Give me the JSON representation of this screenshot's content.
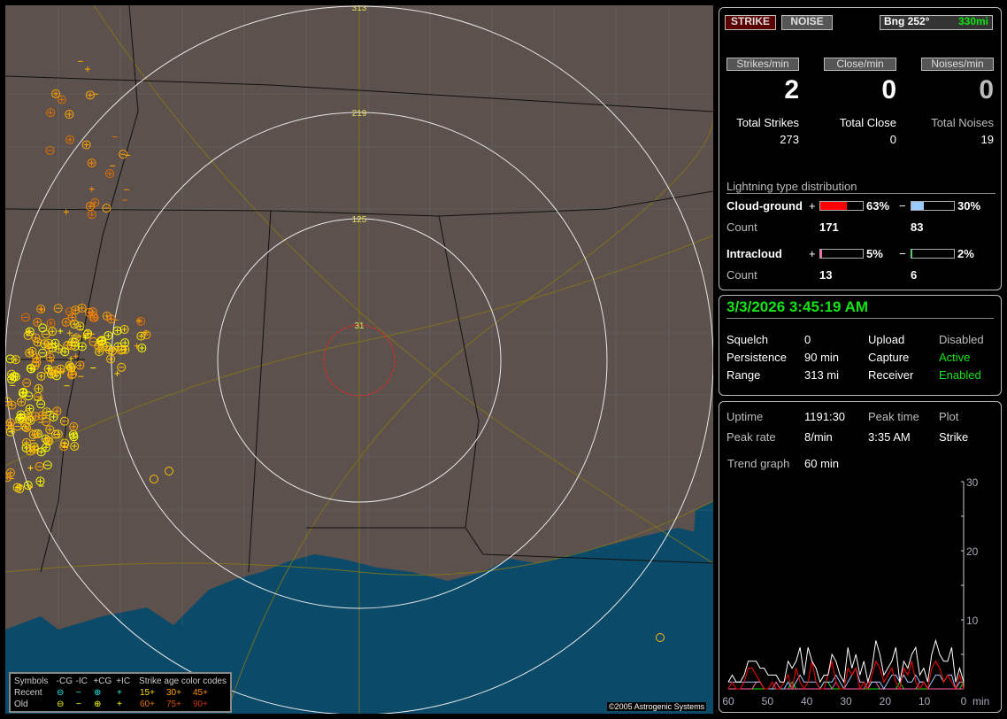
{
  "map": {
    "range_labels": [
      "313",
      "219",
      "125",
      "31"
    ],
    "copyright": "©2005 Astrogenic Systems"
  },
  "legend": {
    "symbols": "Symbols",
    "cols": [
      "-CG",
      "-IC",
      "+CG",
      "+IC"
    ],
    "age_title": "Strike age color codes",
    "recent": "Recent",
    "old": "Old",
    "recent_ages": [
      "15+",
      "30+",
      "45+"
    ],
    "old_ages": [
      "60+",
      "75+",
      "90+"
    ],
    "age_colors": [
      "#ffd700",
      "#ffa500",
      "#ff8c00",
      "#e07000",
      "#d05000",
      "#c83000"
    ]
  },
  "top": {
    "strike": "STRIKE",
    "noise": "NOISE",
    "bearing": "Bng 252°",
    "distance": "330mi",
    "rate_labels": [
      "Strikes/min",
      "Close/min",
      "Noises/min"
    ],
    "rates": [
      "2",
      "0",
      "0"
    ],
    "total_labels": [
      "Total Strikes",
      "Total Close",
      "Total Noises"
    ],
    "totals": [
      "273",
      "0",
      "19"
    ],
    "dist_title": "Lightning type distribution",
    "cg": {
      "label": "Cloud-ground",
      "plus": "+",
      "minus": "−",
      "pos_pct": "63%",
      "neg_pct": "30%",
      "pos_fill": 63,
      "neg_fill": 30,
      "count_label": "Count",
      "pos_count": "171",
      "neg_count": "83"
    },
    "ic": {
      "label": "Intracloud",
      "plus": "+",
      "minus": "−",
      "pos_pct": "5%",
      "neg_pct": "2%",
      "pos_fill": 5,
      "neg_fill": 2,
      "count_label": "Count",
      "pos_count": "13",
      "neg_count": "6"
    },
    "colors": {
      "cg_pos": "#ff0000",
      "cg_neg": "#99ccff",
      "ic_pos": "#ff66aa",
      "ic_neg": "#12e312"
    }
  },
  "status": {
    "datetime": "3/3/2026 3:45:19 AM",
    "rows": [
      [
        "Squelch",
        "0",
        "Upload",
        "Disabled"
      ],
      [
        "Persistence",
        "90 min",
        "Capture",
        "Active"
      ],
      [
        "Range",
        "313 mi",
        "Receiver",
        "Enabled"
      ]
    ]
  },
  "stats": {
    "uptime_label": "Uptime",
    "uptime": "1191:30",
    "peak_time_label": "Peak time",
    "plot_label": "Plot",
    "peak_rate_label": "Peak rate",
    "peak_rate": "8/min",
    "peak_time": "3:35 AM",
    "plot": "Strike",
    "trend_label": "Trend graph",
    "trend": "60 min"
  },
  "chart_data": {
    "type": "line",
    "xlabel": "min",
    "x_ticks": [
      "60",
      "50",
      "40",
      "30",
      "20",
      "10",
      "0"
    ],
    "y_ticks": [
      "10",
      "20",
      "30"
    ],
    "ylim": [
      0,
      30
    ],
    "xlim": [
      60,
      0
    ],
    "series": [
      {
        "color": "#ffffff",
        "values": [
          1,
          2,
          1,
          1,
          2,
          4,
          4,
          4,
          3,
          3,
          2,
          2,
          2,
          1,
          1,
          4,
          3,
          4,
          6,
          2,
          6,
          4,
          3,
          1,
          2,
          2,
          5,
          4,
          2,
          1,
          6,
          3,
          5,
          2,
          4,
          1,
          3,
          7,
          5,
          2,
          3,
          4,
          6,
          1,
          4,
          3,
          5,
          6,
          2,
          3,
          1,
          5,
          7,
          5,
          4,
          4,
          6,
          1,
          3,
          1
        ]
      },
      {
        "color": "#ff0000",
        "values": [
          0,
          1,
          0,
          0,
          1,
          3,
          3,
          2,
          1,
          0,
          0,
          1,
          0,
          0,
          1,
          2,
          0,
          3,
          1,
          0,
          1,
          4,
          1,
          0,
          0,
          2,
          4,
          1,
          0,
          0,
          3,
          2,
          3,
          0,
          1,
          0,
          2,
          4,
          3,
          1,
          2,
          3,
          1,
          0,
          3,
          2,
          4,
          1,
          0,
          1,
          0,
          3,
          4,
          3,
          1,
          2,
          1,
          0,
          2,
          0
        ]
      },
      {
        "color": "#99ccff",
        "values": [
          1,
          1,
          1,
          1,
          1,
          1,
          1,
          1,
          1,
          0,
          0,
          0,
          0,
          0,
          0,
          1,
          0,
          1,
          2,
          1,
          1,
          1,
          1,
          0,
          1,
          1,
          1,
          2,
          1,
          0,
          1,
          2,
          3,
          1,
          1,
          0,
          1,
          1,
          1,
          0,
          1,
          2,
          2,
          1,
          2,
          1,
          1,
          2,
          1,
          1,
          0,
          1,
          2,
          2,
          1,
          2,
          2,
          0,
          1,
          1
        ]
      },
      {
        "color": "#ff66aa",
        "values": [
          0,
          0,
          0,
          0,
          0,
          0,
          0,
          1,
          1,
          0,
          0,
          0,
          1,
          0,
          0,
          0,
          0,
          0,
          0,
          0,
          0,
          0,
          0,
          0,
          0,
          0,
          0,
          1,
          0,
          0,
          0,
          0,
          0,
          0,
          0,
          1,
          1,
          1,
          0,
          0,
          0,
          0,
          0,
          0,
          0,
          0,
          0,
          0,
          1,
          1,
          0,
          0,
          0,
          0,
          0,
          0,
          0,
          0,
          0,
          0
        ]
      },
      {
        "color": "#12e312",
        "values": [
          0,
          0,
          0,
          0,
          0,
          0,
          0,
          0,
          0,
          0,
          0,
          0,
          0,
          0,
          0,
          0,
          1,
          0,
          0,
          0,
          0,
          0,
          0,
          0,
          1,
          1,
          0,
          0,
          0,
          0,
          0,
          0,
          0,
          0,
          0,
          0,
          0,
          0,
          0,
          0,
          0,
          0,
          0,
          1,
          0,
          0,
          0,
          0,
          0,
          0,
          0,
          0,
          0,
          0,
          0,
          0,
          0,
          0,
          0,
          1
        ]
      }
    ]
  }
}
